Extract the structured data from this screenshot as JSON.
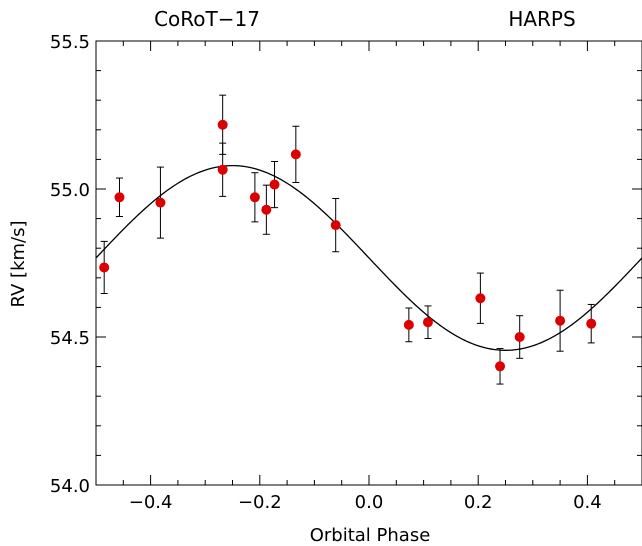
{
  "chart_data": {
    "type": "scatter",
    "title_left": "CoRoT−17",
    "title_right": "HARPS",
    "xlabel": "Orbital Phase",
    "ylabel": "RV [km/s]",
    "xlim": [
      -0.5,
      0.5
    ],
    "ylim": [
      54.0,
      55.5
    ],
    "x_ticks": [
      -0.4,
      -0.2,
      0.0,
      0.2,
      0.4
    ],
    "x_tick_labels": [
      "−0.4",
      "−0.2",
      "0.0",
      "0.2",
      "0.4"
    ],
    "y_ticks": [
      54.0,
      54.5,
      55.0,
      55.5
    ],
    "y_tick_labels": [
      "54.0",
      "54.5",
      "55.0",
      "55.5"
    ],
    "grid": false,
    "points": [
      {
        "x": -0.485,
        "y": 54.735,
        "err": 0.088
      },
      {
        "x": -0.457,
        "y": 54.972,
        "err": 0.065
      },
      {
        "x": -0.382,
        "y": 54.954,
        "err": 0.12
      },
      {
        "x": -0.268,
        "y": 55.217,
        "err": 0.1
      },
      {
        "x": -0.268,
        "y": 55.065,
        "err": 0.09
      },
      {
        "x": -0.209,
        "y": 54.972,
        "err": 0.083
      },
      {
        "x": -0.188,
        "y": 54.93,
        "err": 0.083
      },
      {
        "x": -0.173,
        "y": 55.015,
        "err": 0.078
      },
      {
        "x": -0.134,
        "y": 55.117,
        "err": 0.095
      },
      {
        "x": -0.061,
        "y": 54.878,
        "err": 0.09
      },
      {
        "x": 0.073,
        "y": 54.541,
        "err": 0.057
      },
      {
        "x": 0.108,
        "y": 54.55,
        "err": 0.055
      },
      {
        "x": 0.204,
        "y": 54.631,
        "err": 0.085
      },
      {
        "x": 0.24,
        "y": 54.401,
        "err": 0.06
      },
      {
        "x": 0.276,
        "y": 54.5,
        "err": 0.072
      },
      {
        "x": 0.35,
        "y": 54.555,
        "err": 0.103
      },
      {
        "x": 0.407,
        "y": 54.545,
        "err": 0.065
      }
    ],
    "model_curve": {
      "type": "sinusoid",
      "gamma": 54.767,
      "K": 0.312,
      "phase_of_max": -0.25
    },
    "colors": {
      "points": "#dd0000",
      "curve": "#000000",
      "errorbars": "#000000"
    }
  }
}
